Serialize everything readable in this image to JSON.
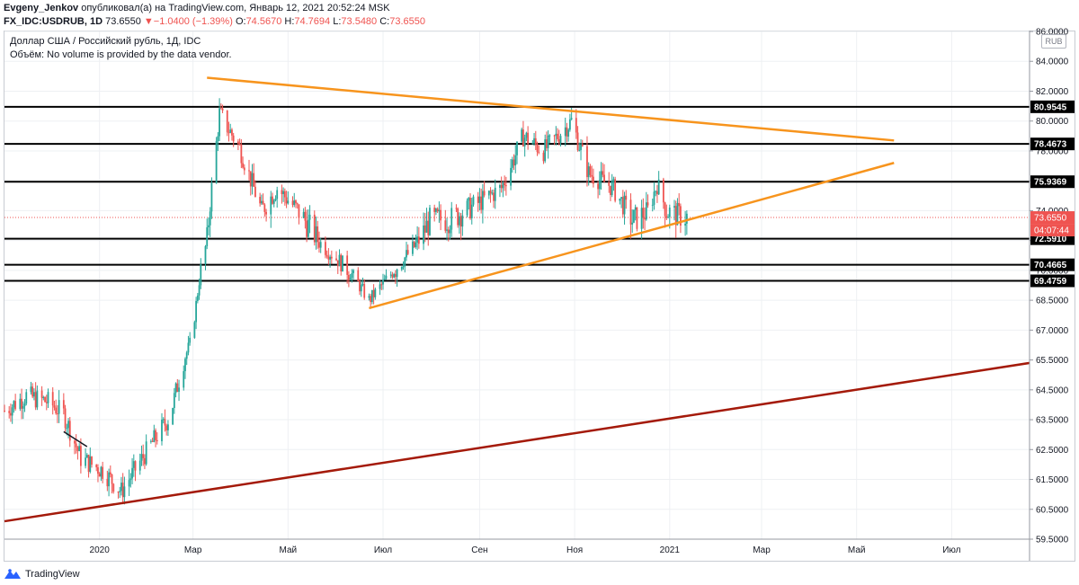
{
  "header": {
    "author": "Evgeny_Jenkov",
    "published": "опубликовал(а) на TradingView.com, Январь 12, 2021 20:52:24 MSK",
    "symbol": "FX_IDC:USDRUB, 1D",
    "last": "73.6550",
    "change_arrow": "▼",
    "change": "−1.0400 (−1.39%)",
    "o_label": "O:",
    "o_value": "74.5670",
    "h_label": "H:",
    "h_value": "74.7694",
    "l_label": "L:",
    "l_value": "73.5480",
    "c_label": "C:",
    "c_value": "73.6550"
  },
  "legend": {
    "title": "Доллар США / Российский рубль, 1Д, IDC",
    "volume_note": "Объём: No volume is provided by the data vendor."
  },
  "currency_badge": "RUB",
  "footer": {
    "brand": "TradingView",
    "icon": "tradingview-logo-icon"
  },
  "chart_data": {
    "type": "candlestick",
    "title": "Доллар США / Российский рубль, 1Д, IDC",
    "x_axis": {
      "ticks": [
        "2020",
        "Мар",
        "Май",
        "Июл",
        "Сен",
        "Ноя",
        "2021",
        "Мар",
        "Май",
        "Июл"
      ],
      "range": [
        "2019-11-01",
        "2021-08-20"
      ]
    },
    "y_axis": {
      "side": "right",
      "range": [
        59.0,
        86.0
      ],
      "ticks": [
        "86.0000",
        "84.0000",
        "82.0000",
        "80.0000",
        "78.0000",
        "76.0000",
        "74.0000",
        "72.5000",
        "70.0000",
        "68.5000",
        "67.0000",
        "65.5000",
        "64.5000",
        "63.5000",
        "62.5000",
        "61.5000",
        "60.5000",
        "59.5000"
      ]
    },
    "tick_values": [
      86.0,
      84.0,
      82.0,
      80.0,
      78.0,
      76.0,
      74.0,
      72.5,
      70.0,
      68.5,
      67.0,
      65.5,
      64.5,
      63.5,
      62.5,
      61.5,
      60.5,
      59.5
    ],
    "grid": true,
    "horizontal_levels": [
      {
        "label": "80.9545",
        "value": 80.9545
      },
      {
        "label": "78.4673",
        "value": 78.4673
      },
      {
        "label": "75.9369",
        "value": 75.9369
      },
      {
        "label": "72.5910",
        "value": 72.591
      },
      {
        "label": "70.4665",
        "value": 70.4665
      },
      {
        "label": "69.4759",
        "value": 69.4759
      }
    ],
    "price_label": {
      "label": "73.6550",
      "value": 73.655,
      "countdown": "04:07:44"
    },
    "trendlines": [
      {
        "color": "#f7941d",
        "from": [
          "2020-03-10",
          82.9
        ],
        "to": [
          "2021-05-25",
          78.7
        ]
      },
      {
        "color": "#f7941d",
        "from": [
          "2020-06-22",
          68.1
        ],
        "to": [
          "2021-05-25",
          77.2
        ]
      },
      {
        "color": "#a41a0a",
        "from": [
          "2019-11-01",
          60.1
        ],
        "to": [
          "2021-08-20",
          65.4
        ]
      },
      {
        "color": "#131722",
        "from": [
          "2019-12-09",
          63.1
        ],
        "to": [
          "2019-12-24",
          62.6
        ]
      }
    ],
    "anchors": [
      [
        "2019-11-01",
        63.8
      ],
      [
        "2019-11-15",
        64.3
      ],
      [
        "2019-11-29",
        64.1
      ],
      [
        "2019-12-09",
        63.7
      ],
      [
        "2019-12-20",
        62.2
      ],
      [
        "2020-01-03",
        61.8
      ],
      [
        "2020-01-15",
        61.1
      ],
      [
        "2020-02-01",
        62.5
      ],
      [
        "2020-02-15",
        63.6
      ],
      [
        "2020-02-29",
        66.5
      ],
      [
        "2020-03-10",
        72.5
      ],
      [
        "2020-03-18",
        80.5
      ],
      [
        "2020-03-31",
        78.2
      ],
      [
        "2020-04-14",
        74.0
      ],
      [
        "2020-04-24",
        75.5
      ],
      [
        "2020-05-12",
        73.5
      ],
      [
        "2020-06-01",
        71.0
      ],
      [
        "2020-06-22",
        68.5
      ],
      [
        "2020-07-08",
        70.0
      ],
      [
        "2020-07-31",
        73.5
      ],
      [
        "2020-08-14",
        73.6
      ],
      [
        "2020-08-31",
        74.5
      ],
      [
        "2020-09-15",
        75.5
      ],
      [
        "2020-09-29",
        79.0
      ],
      [
        "2020-10-12",
        78.0
      ],
      [
        "2020-10-30",
        80.0
      ],
      [
        "2020-11-10",
        76.5
      ],
      [
        "2020-11-25",
        75.6
      ],
      [
        "2020-12-08",
        73.5
      ],
      [
        "2020-12-18",
        74.0
      ],
      [
        "2020-12-24",
        75.8
      ],
      [
        "2020-12-30",
        74.0
      ],
      [
        "2021-01-12",
        73.66
      ]
    ]
  }
}
